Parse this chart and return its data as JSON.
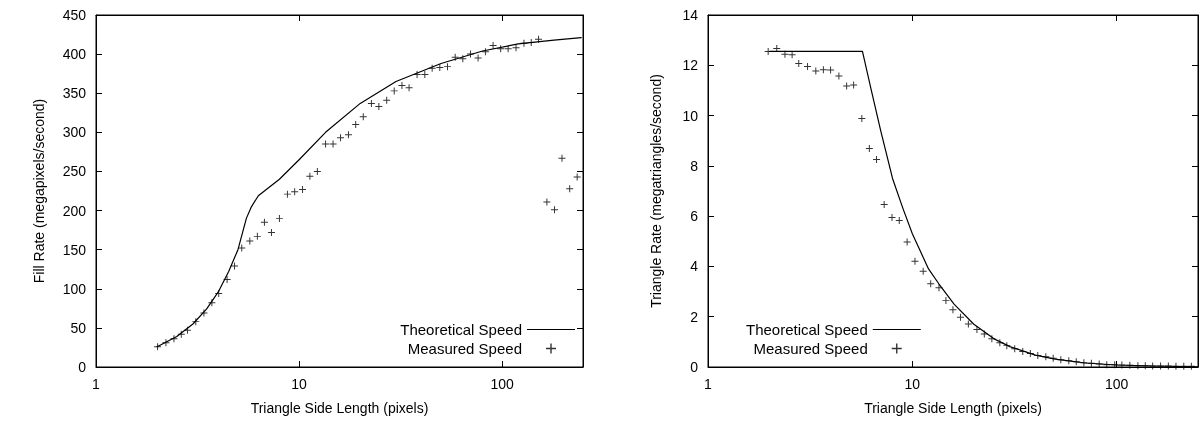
{
  "chart_data": [
    {
      "type": "line",
      "xlabel": "Triangle Side Length (pixels)",
      "ylabel": "Fill Rate (megapixels/second)",
      "log": "x",
      "xlim": [
        1,
        250
      ],
      "xticks": [
        1,
        10,
        100
      ],
      "ylim": [
        0,
        450
      ],
      "yticks": [
        0,
        50,
        100,
        150,
        200,
        250,
        300,
        350,
        400,
        450
      ],
      "grid": false,
      "legend": "bottom right",
      "series": [
        {
          "name": "Theoretical Speed",
          "color": "#000000",
          "marker": "none",
          "line_style": "solid",
          "x": [
            2,
            2.5,
            3,
            3.5,
            4,
            4.5,
            5,
            5.5,
            5.8,
            6.3,
            8,
            10,
            13.5,
            20,
            30,
            50,
            80,
            120,
            180,
            245
          ],
          "values": [
            26,
            39,
            55,
            74,
            96,
            122,
            150,
            190,
            204,
            219,
            240,
            265,
            300,
            337,
            365,
            388,
            404,
            413,
            418,
            421
          ]
        },
        {
          "name": "Measured Speed",
          "type": "scatter",
          "color": "#000000",
          "marker": "cross",
          "x": [
            2.01,
            2.21,
            2.42,
            2.63,
            2.82,
            3.1,
            3.4,
            3.72,
            4.02,
            4.42,
            4.81,
            5.22,
            5.72,
            6.23,
            6.75,
            7.31,
            8,
            8.76,
            9.51,
            10.4,
            11.3,
            12.3,
            13.5,
            14.7,
            16,
            17.5,
            19,
            20.7,
            22.7,
            24.7,
            27,
            29.4,
            32.1,
            34.8,
            38.1,
            41.6,
            45.2,
            49.3,
            53.8,
            58.7,
            64,
            69.8,
            76.1,
            82.7,
            90.2,
            98.3,
            107,
            117,
            128,
            139,
            151,
            166,
            181,
            197,
            215,
            234
          ],
          "values": [
            26,
            31,
            36,
            42,
            47,
            58,
            69,
            82,
            94,
            112,
            129,
            152,
            161,
            167,
            185,
            172,
            190,
            221,
            224,
            227,
            244,
            250,
            285,
            285,
            293,
            297,
            310,
            320,
            337,
            333,
            341,
            353,
            360,
            357,
            374,
            374,
            382,
            383,
            384,
            396,
            394,
            400,
            395,
            403,
            411,
            407,
            407,
            408,
            414,
            415,
            419,
            211,
            201,
            267,
            228,
            243
          ]
        }
      ]
    },
    {
      "type": "line",
      "xlabel": "Triangle Side Length (pixels)",
      "ylabel": "Triangle Rate (megatriangles/second)",
      "log": "x",
      "xlim": [
        1,
        250
      ],
      "xticks": [
        1,
        10,
        100
      ],
      "ylim": [
        0,
        14
      ],
      "yticks": [
        0,
        2,
        4,
        6,
        8,
        10,
        12,
        14
      ],
      "grid": false,
      "legend": "bottom",
      "series": [
        {
          "name": "Theoretical Speed",
          "color": "#000000",
          "marker": "none",
          "line_style": "solid",
          "x": [
            2,
            5.7,
            6.3,
            7,
            8,
            9,
            10,
            12,
            13.5,
            16,
            20,
            25,
            30,
            40,
            50,
            70,
            100,
            150,
            250
          ],
          "values": [
            12.55,
            12.55,
            11.0,
            9.4,
            7.5,
            6.3,
            5.3,
            3.9,
            3.3,
            2.5,
            1.7,
            1.13,
            0.81,
            0.47,
            0.31,
            0.16,
            0.08,
            0.04,
            0.01
          ]
        },
        {
          "name": "Measured Speed",
          "type": "scatter",
          "color": "#000000",
          "marker": "cross",
          "x": [
            1.97,
            2.17,
            2.38,
            2.58,
            2.78,
            3.07,
            3.37,
            3.67,
            3.98,
            4.37,
            4.77,
            5.16,
            5.66,
            6.16,
            6.68,
            7.28,
            7.95,
            8.63,
            9.43,
            10.3,
            11.3,
            12.3,
            13.5,
            14.6,
            15.8,
            17.2,
            18.8,
            20.7,
            22.5,
            24.5,
            26.8,
            29,
            31.7,
            34.7,
            37.8,
            41.1,
            45,
            48.9,
            53.3,
            58.3,
            63.4,
            69.1,
            75.2,
            82.1,
            89.4,
            97.8,
            106,
            116,
            127,
            138,
            150,
            164,
            179,
            195,
            213,
            232
          ],
          "values": [
            12.55,
            12.67,
            12.44,
            12.42,
            12.07,
            11.95,
            11.77,
            11.82,
            11.81,
            11.57,
            11.18,
            11.22,
            9.88,
            8.69,
            8.25,
            6.46,
            5.95,
            5.83,
            4.97,
            4.21,
            3.81,
            3.31,
            3.15,
            2.64,
            2.28,
            1.98,
            1.71,
            1.49,
            1.31,
            1.12,
            0.96,
            0.85,
            0.73,
            0.62,
            0.54,
            0.46,
            0.41,
            0.35,
            0.29,
            0.25,
            0.21,
            0.17,
            0.15,
            0.12,
            0.09,
            0.09,
            0.08,
            0.07,
            0.05,
            0.05,
            0.04,
            0.04,
            0.04,
            0.03,
            0.03,
            0.03
          ]
        }
      ]
    }
  ]
}
